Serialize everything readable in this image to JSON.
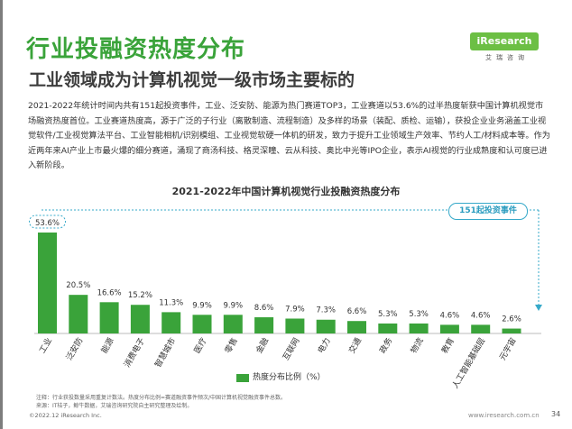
{
  "header": {
    "title": "行业投融资热度分布",
    "subtitle": "工业领域成为计算机视觉一级市场主要标的"
  },
  "logo": {
    "brand": "iResearch",
    "sub": "艾瑞咨询"
  },
  "body_text": "2021-2022年统计时间内共有151起投资事件，工业、泛安防、能源为热门赛道TOP3，工业赛道以53.6%的过半热度斩获中国计算机视觉市场融资热度首位。工业赛道热度高，源于广泛的子行业（离散制造、流程制造）及多样的场景（装配、质检、运输），获投企业业务涵盖工业视觉软件/工业视觉算法平台、工业智能相机/识别模组、工业视觉软硬一体机的研发，致力于提升工业领域生产效率、节约人工/材料成本等。作为近两年来AI产业上市最火爆的细分赛道，涌现了商汤科技、格灵深瞳、云从科技、奥比中光等IPO企业，表示AI视觉的行业成熟度和认可度已进入新阶段。",
  "colors": {
    "accent": "#3aa33a",
    "callout": "#36a9c9"
  },
  "chart_data": {
    "type": "bar",
    "title": "2021-2022年中国计算机视觉行业投融资热度分布",
    "categories": [
      "工业",
      "泛安防",
      "能源",
      "消费电子",
      "智慧城市",
      "医疗",
      "零售",
      "金融",
      "互联网",
      "电力",
      "交通",
      "政务",
      "物流",
      "教育",
      "人工智能基础层",
      "元宇宙"
    ],
    "values": [
      53.6,
      20.5,
      16.6,
      15.2,
      11.3,
      9.9,
      9.9,
      8.6,
      7.9,
      7.3,
      6.6,
      5.3,
      5.3,
      4.6,
      4.6,
      2.6
    ],
    "value_labels": [
      "53.6%",
      "20.5%",
      "16.6%",
      "15.2%",
      "11.3%",
      "9.9%",
      "9.9%",
      "8.6%",
      "7.9%",
      "7.3%",
      "6.6%",
      "5.3%",
      "5.3%",
      "4.6%",
      "4.6%",
      "2.6%"
    ],
    "legend": "热度分布比例（%）",
    "ylim": [
      0,
      60
    ],
    "grid": false,
    "callout": "151起投资事件"
  },
  "footer": {
    "note": "注释：行业获投数量采用重复计数法。热度分布比例=赛道融资事件频次/中国计算机视觉融资事件总数。",
    "source": "来源：IT桔子，鲸牛数据，艾瑞咨询研究院自主研究整理及绘制。",
    "copyright": "©2022.12 iResearch Inc.",
    "url": "www.iresearch.com.cn",
    "page": "34"
  }
}
